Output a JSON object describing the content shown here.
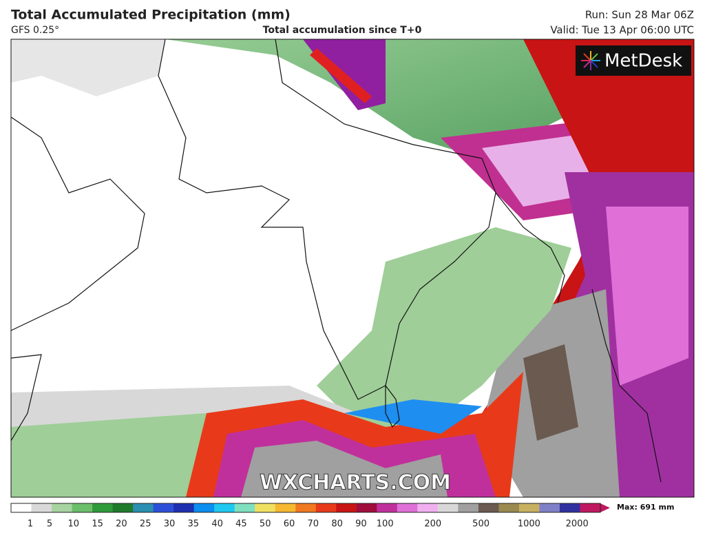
{
  "header": {
    "title": "Total Accumulated Precipitation (mm)",
    "model": "GFS 0.25°",
    "subtitle": "Total accumulation since T+0",
    "run": "Run: Sun 28 Mar 06Z",
    "valid": "Valid: Tue 13 Apr 06:00 UTC"
  },
  "map": {
    "logo": "MetDesk",
    "watermark": "WXCHARTS.COM"
  },
  "colorbar": {
    "labels": [
      1,
      5,
      10,
      15,
      20,
      25,
      30,
      35,
      40,
      45,
      50,
      60,
      70,
      80,
      90,
      100,
      200,
      500,
      1000,
      2000
    ],
    "colors": [
      "#ffffff",
      "#d9d9d9",
      "#a7d3a0",
      "#6bbf6b",
      "#2e9a3a",
      "#1f7a2c",
      "#2a8fb0",
      "#2d4fd8",
      "#1e2fb0",
      "#0a8ef0",
      "#1ec8f0",
      "#7fe0c0",
      "#f0e060",
      "#f5b830",
      "#f07820",
      "#e83a1a",
      "#c81414",
      "#a00c3c",
      "#c0309c",
      "#e070d8",
      "#f0b0f0",
      "#d8d8d8",
      "#a0a0a0",
      "#6a5a50",
      "#9a8a50",
      "#c8b060",
      "#8080c8",
      "#3030a0",
      "#c01860"
    ],
    "max": "Max: 691 mm"
  }
}
